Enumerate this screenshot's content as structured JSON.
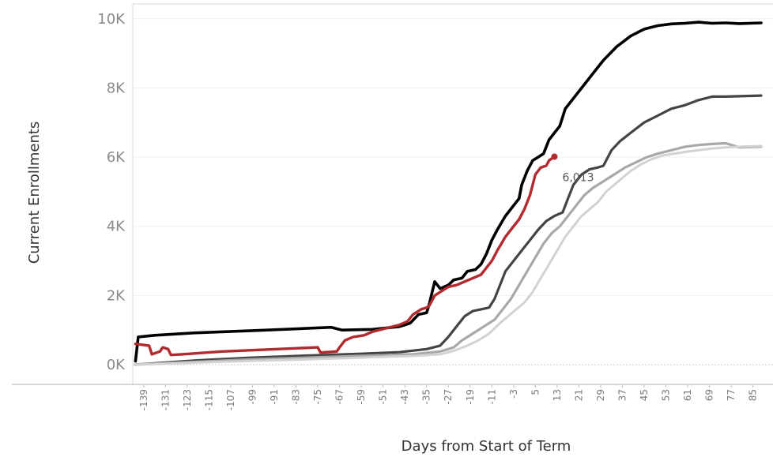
{
  "chart_data": {
    "type": "line",
    "xlabel": "Days from Start of Term",
    "ylabel": "Current Enrollments",
    "xlim": [
      -143,
      88
    ],
    "ylim": [
      0,
      10200
    ],
    "y_ticks": [
      {
        "value": 0,
        "label": "0K"
      },
      {
        "value": 2000,
        "label": "2K"
      },
      {
        "value": 4000,
        "label": "4K"
      },
      {
        "value": 6000,
        "label": "6K"
      },
      {
        "value": 8000,
        "label": "8K"
      },
      {
        "value": 10000,
        "label": "10K"
      }
    ],
    "x_ticks": [
      "-139",
      "-131",
      "-123",
      "-115",
      "-107",
      "-99",
      "-91",
      "-83",
      "-75",
      "-67",
      "-59",
      "-51",
      "-43",
      "-35",
      "-27",
      "-19",
      "-11",
      "-3",
      "5",
      "13",
      "21",
      "29",
      "37",
      "45",
      "53",
      "61",
      "69",
      "77",
      "85"
    ],
    "grid": true,
    "annotation": {
      "text": "6,013",
      "x": 12,
      "y": 6013
    },
    "series": [
      {
        "color": "#000000",
        "width": 3.6,
        "points": [
          [
            -142,
            100
          ],
          [
            -141,
            800
          ],
          [
            -135,
            850
          ],
          [
            -120,
            920
          ],
          [
            -100,
            980
          ],
          [
            -85,
            1030
          ],
          [
            -70,
            1080
          ],
          [
            -66,
            1000
          ],
          [
            -55,
            1020
          ],
          [
            -45,
            1100
          ],
          [
            -41,
            1200
          ],
          [
            -38,
            1450
          ],
          [
            -35,
            1500
          ],
          [
            -34,
            1750
          ],
          [
            -32,
            2400
          ],
          [
            -30,
            2200
          ],
          [
            -27,
            2300
          ],
          [
            -25,
            2450
          ],
          [
            -22,
            2500
          ],
          [
            -20,
            2700
          ],
          [
            -17,
            2750
          ],
          [
            -15,
            2900
          ],
          [
            -13,
            3200
          ],
          [
            -11,
            3600
          ],
          [
            -9,
            3900
          ],
          [
            -6,
            4300
          ],
          [
            -3,
            4600
          ],
          [
            -1,
            4800
          ],
          [
            0,
            5200
          ],
          [
            2,
            5600
          ],
          [
            4,
            5900
          ],
          [
            6,
            6000
          ],
          [
            8,
            6100
          ],
          [
            10,
            6500
          ],
          [
            12,
            6700
          ],
          [
            14,
            6900
          ],
          [
            16,
            7400
          ],
          [
            19,
            7700
          ],
          [
            22,
            8000
          ],
          [
            26,
            8400
          ],
          [
            30,
            8800
          ],
          [
            35,
            9200
          ],
          [
            40,
            9500
          ],
          [
            45,
            9700
          ],
          [
            50,
            9800
          ],
          [
            55,
            9850
          ],
          [
            60,
            9870
          ],
          [
            65,
            9900
          ],
          [
            70,
            9870
          ],
          [
            75,
            9880
          ],
          [
            80,
            9860
          ],
          [
            88,
            9880
          ]
        ]
      },
      {
        "color": "#444444",
        "width": 3.2,
        "points": [
          [
            -142,
            0
          ],
          [
            -120,
            120
          ],
          [
            -100,
            200
          ],
          [
            -80,
            260
          ],
          [
            -60,
            310
          ],
          [
            -45,
            360
          ],
          [
            -35,
            450
          ],
          [
            -30,
            550
          ],
          [
            -27,
            800
          ],
          [
            -24,
            1100
          ],
          [
            -21,
            1400
          ],
          [
            -18,
            1550
          ],
          [
            -15,
            1600
          ],
          [
            -12,
            1650
          ],
          [
            -10,
            1900
          ],
          [
            -8,
            2300
          ],
          [
            -6,
            2700
          ],
          [
            -3,
            3000
          ],
          [
            0,
            3300
          ],
          [
            3,
            3600
          ],
          [
            6,
            3900
          ],
          [
            9,
            4150
          ],
          [
            12,
            4300
          ],
          [
            15,
            4400
          ],
          [
            17,
            4800
          ],
          [
            19,
            5200
          ],
          [
            22,
            5500
          ],
          [
            25,
            5650
          ],
          [
            28,
            5700
          ],
          [
            30,
            5750
          ],
          [
            33,
            6200
          ],
          [
            36,
            6450
          ],
          [
            40,
            6700
          ],
          [
            45,
            7000
          ],
          [
            50,
            7200
          ],
          [
            55,
            7400
          ],
          [
            60,
            7500
          ],
          [
            65,
            7650
          ],
          [
            70,
            7750
          ],
          [
            75,
            7750
          ],
          [
            80,
            7760
          ],
          [
            88,
            7780
          ]
        ]
      },
      {
        "color": "#a8a8a8",
        "width": 3.2,
        "points": [
          [
            -142,
            0
          ],
          [
            -120,
            80
          ],
          [
            -100,
            150
          ],
          [
            -80,
            200
          ],
          [
            -60,
            250
          ],
          [
            -40,
            300
          ],
          [
            -30,
            380
          ],
          [
            -25,
            500
          ],
          [
            -22,
            700
          ],
          [
            -18,
            900
          ],
          [
            -14,
            1100
          ],
          [
            -10,
            1300
          ],
          [
            -7,
            1600
          ],
          [
            -4,
            1900
          ],
          [
            -1,
            2300
          ],
          [
            2,
            2700
          ],
          [
            5,
            3100
          ],
          [
            8,
            3500
          ],
          [
            11,
            3800
          ],
          [
            14,
            4000
          ],
          [
            17,
            4300
          ],
          [
            20,
            4600
          ],
          [
            23,
            4900
          ],
          [
            26,
            5100
          ],
          [
            30,
            5300
          ],
          [
            34,
            5500
          ],
          [
            38,
            5700
          ],
          [
            42,
            5850
          ],
          [
            46,
            6000
          ],
          [
            50,
            6100
          ],
          [
            55,
            6200
          ],
          [
            60,
            6300
          ],
          [
            65,
            6350
          ],
          [
            70,
            6380
          ],
          [
            75,
            6400
          ],
          [
            80,
            6280
          ],
          [
            88,
            6300
          ]
        ]
      },
      {
        "color": "#d2d2d2",
        "width": 3.0,
        "points": [
          [
            -142,
            0
          ],
          [
            -120,
            60
          ],
          [
            -100,
            110
          ],
          [
            -80,
            150
          ],
          [
            -60,
            200
          ],
          [
            -40,
            250
          ],
          [
            -30,
            300
          ],
          [
            -25,
            400
          ],
          [
            -20,
            550
          ],
          [
            -16,
            700
          ],
          [
            -12,
            900
          ],
          [
            -8,
            1200
          ],
          [
            -5,
            1400
          ],
          [
            -2,
            1600
          ],
          [
            1,
            1800
          ],
          [
            4,
            2100
          ],
          [
            7,
            2500
          ],
          [
            10,
            2900
          ],
          [
            13,
            3300
          ],
          [
            16,
            3700
          ],
          [
            19,
            4000
          ],
          [
            22,
            4300
          ],
          [
            25,
            4500
          ],
          [
            28,
            4700
          ],
          [
            31,
            5000
          ],
          [
            34,
            5200
          ],
          [
            37,
            5400
          ],
          [
            40,
            5600
          ],
          [
            44,
            5800
          ],
          [
            48,
            5950
          ],
          [
            52,
            6050
          ],
          [
            56,
            6100
          ],
          [
            60,
            6150
          ],
          [
            65,
            6200
          ],
          [
            70,
            6250
          ],
          [
            75,
            6280
          ],
          [
            80,
            6300
          ],
          [
            88,
            6320
          ]
        ]
      },
      {
        "color": "#b22a2f",
        "width": 3.4,
        "points": [
          [
            -142,
            600
          ],
          [
            -137,
            550
          ],
          [
            -136,
            300
          ],
          [
            -133,
            380
          ],
          [
            -132,
            500
          ],
          [
            -130,
            450
          ],
          [
            -129,
            280
          ],
          [
            -125,
            300
          ],
          [
            -110,
            380
          ],
          [
            -90,
            450
          ],
          [
            -75,
            500
          ],
          [
            -74,
            350
          ],
          [
            -68,
            380
          ],
          [
            -67,
            500
          ],
          [
            -65,
            700
          ],
          [
            -62,
            800
          ],
          [
            -58,
            850
          ],
          [
            -55,
            950
          ],
          [
            -50,
            1050
          ],
          [
            -45,
            1150
          ],
          [
            -42,
            1250
          ],
          [
            -40,
            1450
          ],
          [
            -37,
            1600
          ],
          [
            -35,
            1650
          ],
          [
            -34,
            1700
          ],
          [
            -32,
            2000
          ],
          [
            -29,
            2150
          ],
          [
            -27,
            2250
          ],
          [
            -24,
            2300
          ],
          [
            -21,
            2400
          ],
          [
            -18,
            2500
          ],
          [
            -15,
            2600
          ],
          [
            -13,
            2800
          ],
          [
            -11,
            3000
          ],
          [
            -9,
            3300
          ],
          [
            -6,
            3700
          ],
          [
            -3,
            4000
          ],
          [
            -1,
            4200
          ],
          [
            1,
            4500
          ],
          [
            3,
            4900
          ],
          [
            5,
            5500
          ],
          [
            7,
            5700
          ],
          [
            9,
            5750
          ],
          [
            10,
            5900
          ],
          [
            12,
            6013
          ]
        ]
      }
    ]
  }
}
